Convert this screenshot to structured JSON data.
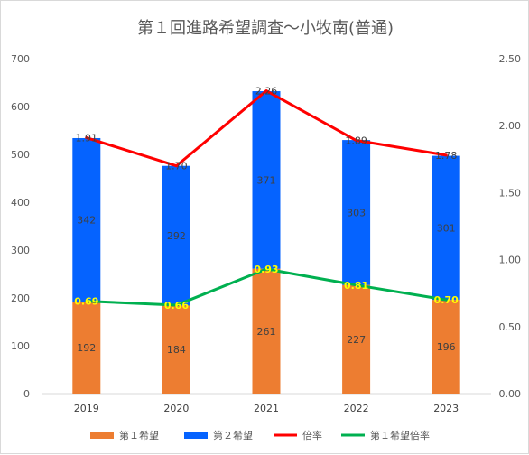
{
  "chart_data": {
    "type": "bar",
    "title": "第１回進路希望調査～小牧南(普通)",
    "categories": [
      "2019",
      "2020",
      "2021",
      "2022",
      "2023"
    ],
    "stacked_series": [
      {
        "name": "第１希望",
        "values": [
          192,
          184,
          261,
          227,
          196
        ],
        "color": "#ed7d31"
      },
      {
        "name": "第２希望",
        "values": [
          342,
          292,
          371,
          303,
          301
        ],
        "color": "#0563ff"
      }
    ],
    "line_series": [
      {
        "name": "倍率",
        "values": [
          1.91,
          1.7,
          2.26,
          1.89,
          1.78
        ],
        "labels": [
          "1.91",
          "1.70",
          "2.26",
          "1.89",
          "1.78"
        ],
        "color": "#ff0000",
        "axis": "right"
      },
      {
        "name": "第１希望倍率",
        "values": [
          0.69,
          0.66,
          0.93,
          0.81,
          0.7
        ],
        "labels": [
          "0.69",
          "0.66",
          "0.93",
          "0.81",
          "0.70"
        ],
        "color": "#00b050",
        "axis": "right"
      }
    ],
    "y_left": {
      "ylim": [
        0,
        700
      ],
      "ticks": [
        "0",
        "100",
        "200",
        "300",
        "400",
        "500",
        "600",
        "700"
      ]
    },
    "y_right": {
      "ylim": [
        0,
        2.5
      ],
      "ticks": [
        "0.00",
        "0.50",
        "1.00",
        "1.50",
        "2.00",
        "2.50"
      ]
    },
    "legend": "bottom",
    "grid": false
  }
}
